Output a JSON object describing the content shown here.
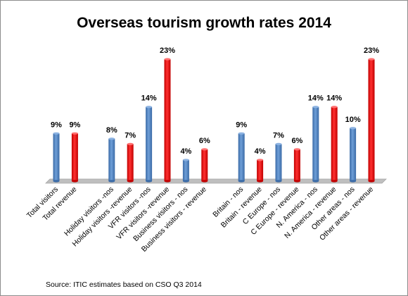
{
  "chart_data": {
    "type": "bar",
    "title": "Overseas tourism growth rates 2014",
    "source": "Source: ITIC estimates based on CSO Q3 2014",
    "unit_suffix": "%",
    "ylim": [
      0,
      23
    ],
    "grid": false,
    "colors": {
      "nos": "#4f81bd",
      "revenue": "#ff0000",
      "floor": "#bfbfbf"
    },
    "bars": [
      {
        "label": "Total visitors",
        "value": 9,
        "kind": "nos",
        "group": 0
      },
      {
        "label": "Total revenue",
        "value": 9,
        "kind": "revenue",
        "group": 0
      },
      {
        "label": "Holiday visitors -nos",
        "value": 8,
        "kind": "nos",
        "group": 1
      },
      {
        "label": "Holiday visitors -revenue",
        "value": 7,
        "kind": "revenue",
        "group": 1
      },
      {
        "label": "VFR visitors -nos",
        "value": 14,
        "kind": "nos",
        "group": 1
      },
      {
        "label": "VFR visitors -revenue",
        "value": 23,
        "kind": "revenue",
        "group": 1
      },
      {
        "label": "Business visitors - nos",
        "value": 4,
        "kind": "nos",
        "group": 1
      },
      {
        "label": "Business visitors  - revenue",
        "value": 6,
        "kind": "revenue",
        "group": 1
      },
      {
        "label": "Britain - nos",
        "value": 9,
        "kind": "nos",
        "group": 2
      },
      {
        "label": "Britain - revenue",
        "value": 4,
        "kind": "revenue",
        "group": 2
      },
      {
        "label": "C Europe - nos",
        "value": 7,
        "kind": "nos",
        "group": 2
      },
      {
        "label": "C Europe - revenue",
        "value": 6,
        "kind": "revenue",
        "group": 2
      },
      {
        "label": "N. America - nos",
        "value": 14,
        "kind": "nos",
        "group": 2
      },
      {
        "label": "N. America - revenue",
        "value": 14,
        "kind": "revenue",
        "group": 2
      },
      {
        "label": "Other areas - nos",
        "value": 10,
        "kind": "nos",
        "group": 2
      },
      {
        "label": "Other areas - revenue",
        "value": 23,
        "kind": "revenue",
        "group": 2
      }
    ]
  }
}
